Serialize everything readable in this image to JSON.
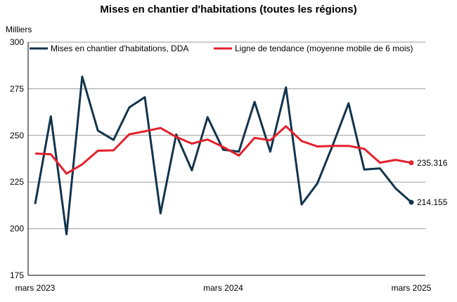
{
  "chart_data": {
    "type": "line",
    "title": "Mises en chantier d'habitations (toutes les régions)",
    "ylabel": "Milliers",
    "ylim": [
      175,
      300
    ],
    "yticks": [
      175,
      200,
      225,
      250,
      275,
      300
    ],
    "x": [
      "2023-03",
      "2023-04",
      "2023-05",
      "2023-06",
      "2023-07",
      "2023-08",
      "2023-09",
      "2023-10",
      "2023-11",
      "2023-12",
      "2024-01",
      "2024-02",
      "2024-03",
      "2024-04",
      "2024-05",
      "2024-06",
      "2024-07",
      "2024-08",
      "2024-09",
      "2024-10",
      "2024-11",
      "2024-12",
      "2025-01",
      "2025-02",
      "2025-03"
    ],
    "xtick_labels": [
      {
        "x": "2023-03",
        "label": "mars 2023"
      },
      {
        "x": "2024-03",
        "label": "mars 2024"
      },
      {
        "x": "2025-03",
        "label": "mars 2025"
      }
    ],
    "grid": true,
    "legend": "top",
    "series": [
      {
        "name": "Mises en chantier d'habitations, DDA",
        "color": "#12344d",
        "values": [
          213.2,
          260.2,
          197.0,
          281.5,
          252.6,
          247.6,
          265.0,
          270.5,
          208.2,
          250.5,
          231.3,
          259.8,
          242.3,
          241.3,
          268.0,
          241.3,
          275.7,
          213.0,
          224.2,
          245.0,
          267.2,
          231.7,
          232.3,
          221.6,
          214.155
        ],
        "end_label": "214.155"
      },
      {
        "name": "Ligne de tendance (moyenne mobile de 6 mois)",
        "color": "#e3202c",
        "values": [
          240.3,
          239.9,
          229.5,
          234.5,
          241.8,
          242.0,
          250.6,
          252.2,
          254.0,
          249.2,
          245.6,
          247.8,
          243.8,
          239.2,
          248.7,
          247.4,
          254.9,
          247.0,
          244.1,
          244.4,
          244.4,
          242.8,
          235.4,
          236.9,
          235.316
        ],
        "end_label": "235.316"
      }
    ]
  }
}
